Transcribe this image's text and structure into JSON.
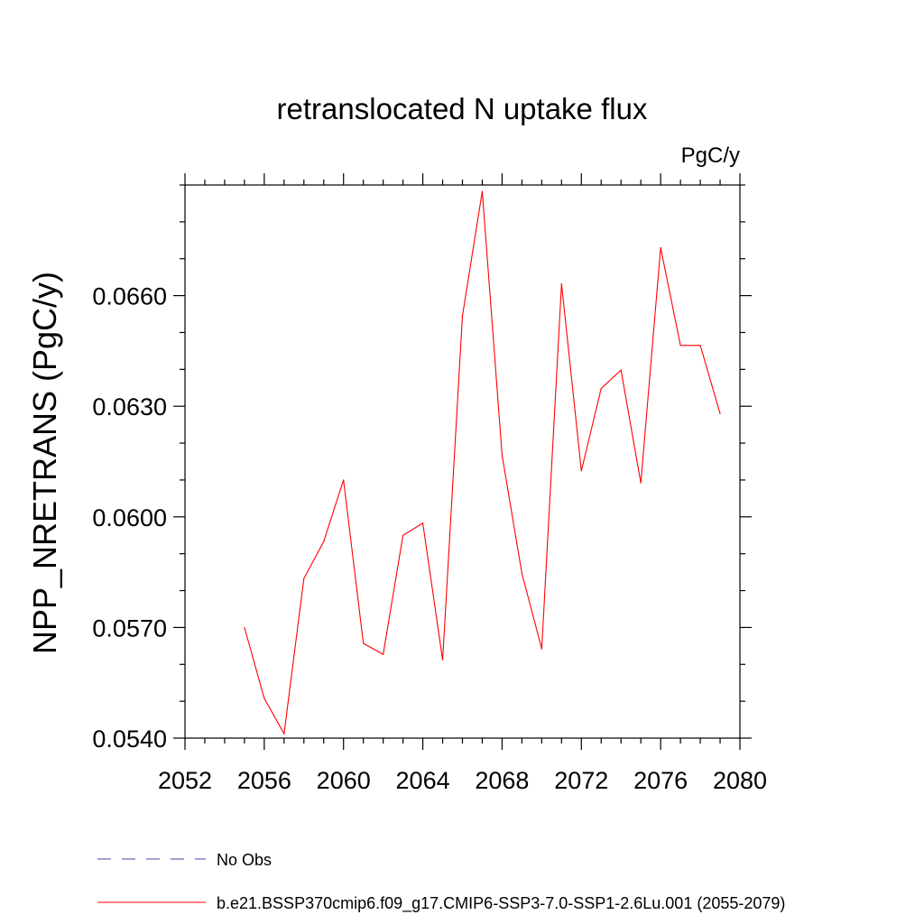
{
  "chart_data": {
    "type": "line",
    "title": "retranslocated N uptake flux",
    "units_label": "PgC/y",
    "ylabel": "NPP_NRETRANS  (PgC/y)",
    "xlabel": "",
    "xlim": [
      2052,
      2080
    ],
    "ylim": [
      0.054,
      0.069
    ],
    "x_ticks": [
      2052,
      2056,
      2060,
      2064,
      2068,
      2072,
      2076,
      2080
    ],
    "x_tick_labels": [
      "2052",
      "2056",
      "2060",
      "2064",
      "2068",
      "2072",
      "2076",
      "2080"
    ],
    "x_minor_step": 1,
    "y_ticks": [
      0.054,
      0.057,
      0.06,
      0.063,
      0.066
    ],
    "y_tick_labels": [
      "0.0540",
      "0.0570",
      "0.0600",
      "0.0630",
      "0.0660"
    ],
    "y_minor_step": 0.001,
    "grid": false,
    "legend_position": "bottom",
    "series": [
      {
        "name": "No Obs",
        "color": "#4b3fa8",
        "dash": "dashed",
        "x": [],
        "y": []
      },
      {
        "name": "b.e21.BSSP370cmip6.f09_g17.CMIP6-SSP3-7.0-SSP1-2.6Lu.001 (2055-2079)",
        "color": "#ff0000",
        "dash": "solid",
        "x": [
          2055,
          2056,
          2057,
          2058,
          2059,
          2060,
          2061,
          2062,
          2063,
          2064,
          2065,
          2066,
          2067,
          2068,
          2069,
          2070,
          2071,
          2072,
          2073,
          2074,
          2075,
          2076,
          2077,
          2078,
          2079
        ],
        "y": [
          0.057,
          0.05508,
          0.05412,
          0.05833,
          0.05933,
          0.061,
          0.05657,
          0.05627,
          0.0595,
          0.05983,
          0.05612,
          0.06545,
          0.06883,
          0.06167,
          0.05847,
          0.05642,
          0.06632,
          0.06125,
          0.06348,
          0.06398,
          0.06092,
          0.0673,
          0.06465,
          0.06465,
          0.0628
        ]
      }
    ]
  }
}
